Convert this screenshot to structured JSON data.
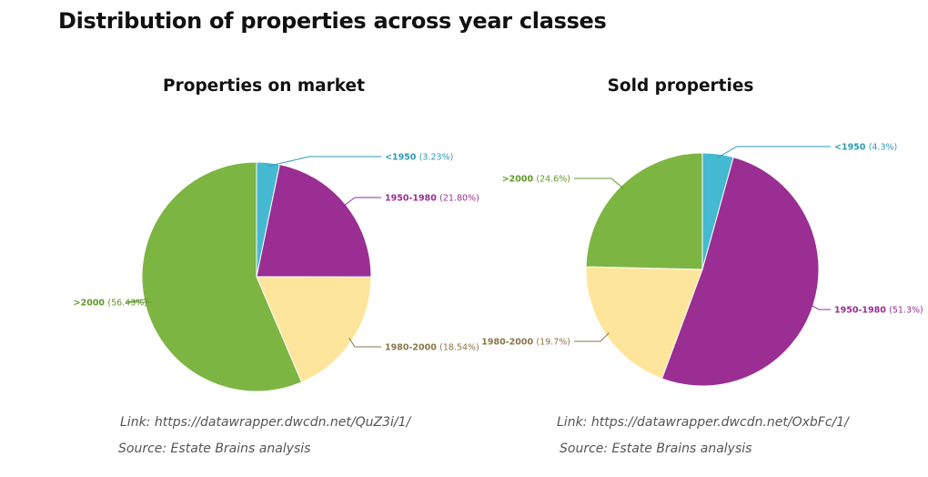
{
  "title": "Distribution of properties across year classes",
  "colors": {
    "lt1950": "#45b8d2",
    "y1950_1980": "#9a2e93",
    "y1980_2000": "#fde59b",
    "gt2000": "#7db543",
    "lbl_lt1950": "#2f9ab3",
    "lbl_1950_1980": "#9a2e93",
    "lbl_1980_2000": "#8a7648",
    "lbl_gt2000": "#5f9a2a"
  },
  "chart_data": [
    {
      "type": "pie",
      "title": "Properties on market",
      "slices": [
        {
          "label": "<1950",
          "value": 3.23,
          "value_text": "(3.23%)"
        },
        {
          "label": "1950-1980",
          "value": 21.8,
          "value_text": "(21.80%)"
        },
        {
          "label": "1980-2000",
          "value": 18.54,
          "value_text": "(18.54%)"
        },
        {
          "label": ">2000",
          "value": 56.43,
          "value_text": "(56.43%)"
        }
      ]
    },
    {
      "type": "pie",
      "title": "Sold properties",
      "slices": [
        {
          "label": "<1950",
          "value": 4.3,
          "value_text": "(4.3%)"
        },
        {
          "label": "1950-1980",
          "value": 51.3,
          "value_text": "(51.3%)"
        },
        {
          "label": "1980-2000",
          "value": 19.7,
          "value_text": "(19.7%)"
        },
        {
          "label": ">2000",
          "value": 24.6,
          "value_text": "(24.6%)"
        }
      ]
    }
  ],
  "notes": {
    "left": {
      "link_prefix": "Link:",
      "link_url": "https://datawrapper.dwcdn.net/QuZ3i/1/",
      "source": "Source: Estate Brains analysis"
    },
    "right": {
      "link_prefix": "Link:",
      "link_url": "https://datawrapper.dwcdn.net/OxbFc/1/",
      "source": "Source: Estate Brains analysis"
    }
  }
}
